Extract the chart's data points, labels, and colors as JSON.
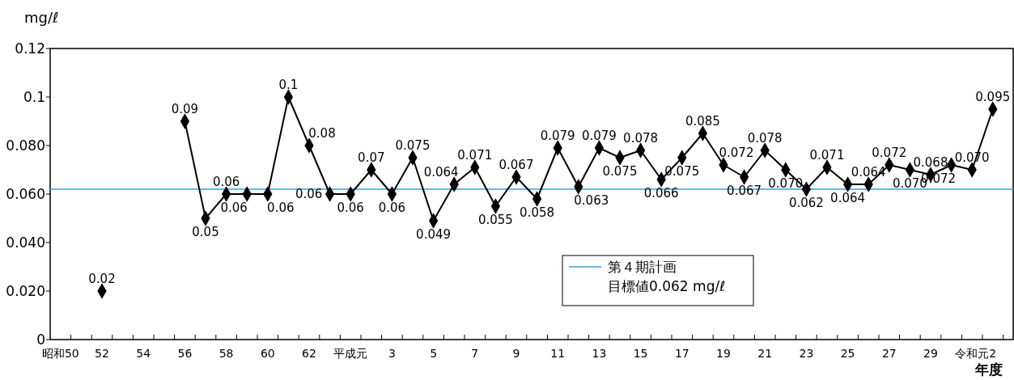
{
  "chart_data": {
    "type": "line",
    "ylabel": "mg/ℓ",
    "xlabel": "年度",
    "categories": [
      "昭和50",
      null,
      "52",
      null,
      "54",
      null,
      "56",
      null,
      "58",
      null,
      "60",
      null,
      "62",
      null,
      "平成元",
      null,
      "3",
      null,
      "5",
      null,
      "7",
      null,
      "9",
      null,
      "11",
      null,
      "13",
      null,
      "15",
      null,
      "17",
      null,
      "19",
      null,
      "21",
      null,
      "23",
      null,
      "25",
      null,
      "27",
      null,
      "29",
      null,
      "令和元",
      "2"
    ],
    "series": [
      {
        "color": "#000000",
        "values": [
          null,
          null,
          0.02,
          null,
          null,
          null,
          0.09,
          0.05,
          0.06,
          0.06,
          0.06,
          0.1,
          0.08,
          0.06,
          0.06,
          0.07,
          0.06,
          0.075,
          0.049,
          0.064,
          0.071,
          0.055,
          0.067,
          0.058,
          0.079,
          0.063,
          0.079,
          0.075,
          0.078,
          0.066,
          0.075,
          0.085,
          0.072,
          0.067,
          0.078,
          0.07,
          0.062,
          0.071,
          0.064,
          0.064,
          0.072,
          0.07,
          0.068,
          0.072,
          0.07,
          0.095
        ],
        "value_labels": [
          null,
          null,
          "0.02",
          null,
          null,
          null,
          "0.09",
          "0.05",
          "0.06",
          "0.06",
          "0.06",
          "0.1",
          "0.08",
          "0.06",
          "0.06",
          "0.07",
          "0.06",
          "0.075",
          "0.049",
          "0.064",
          "0.071",
          "0.055",
          "0.067",
          "0.058",
          "0.079",
          "0.063",
          "0.079",
          "0.075",
          "0.078",
          "0.066",
          "0.075",
          "0.085",
          "0.072",
          "0.067",
          "0.078",
          "0.070",
          "0.062",
          "0.071",
          "0.064",
          "0.064",
          "0.072",
          "0.070",
          "0.068",
          "0.072",
          "0.070",
          "0.095"
        ]
      }
    ],
    "ylim": [
      0,
      0.12
    ],
    "yticks": [
      0,
      {
        "value": 0.02,
        "label": "0.020"
      },
      {
        "value": 0.04,
        "label": "0.040"
      },
      {
        "value": 0.06,
        "label": "0.060"
      },
      {
        "value": 0.08,
        "label": "0.080"
      },
      0.1,
      0.12
    ],
    "ref_lines": [
      {
        "axis": "y",
        "value": 0.062,
        "label": "第４期計画目標値0.062 mg/ℓ",
        "color": "#3aa0d8"
      }
    ],
    "marker": "diamond",
    "line_style": "solid",
    "grid": false,
    "legend": "bottom"
  }
}
